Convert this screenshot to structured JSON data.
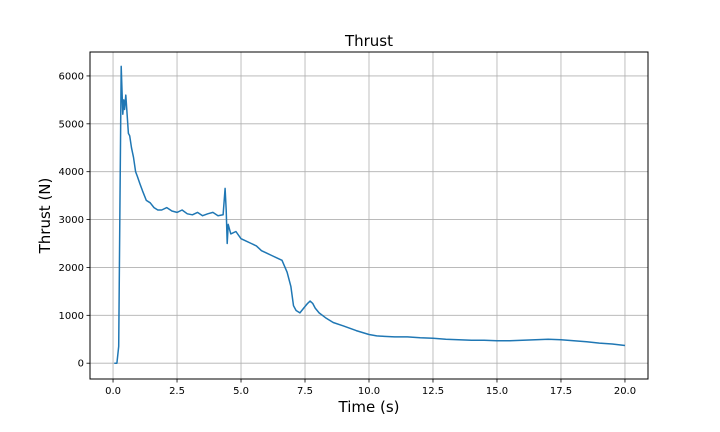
{
  "chart_data": {
    "type": "line",
    "title": "Thrust",
    "xlabel": "Time (s)",
    "ylabel": "Thrust (N)",
    "xlim": [
      -0.9,
      20.9
    ],
    "ylim": [
      -330,
      6500
    ],
    "x_ticks": [
      0.0,
      2.5,
      5.0,
      7.5,
      10.0,
      12.5,
      15.0,
      17.5,
      20.0
    ],
    "x_tick_labels": [
      "0.0",
      "2.5",
      "5.0",
      "7.5",
      "10.0",
      "12.5",
      "15.0",
      "17.5",
      "20.0"
    ],
    "y_ticks": [
      0,
      1000,
      2000,
      3000,
      4000,
      5000,
      6000
    ],
    "y_tick_labels": [
      "0",
      "1000",
      "2000",
      "3000",
      "4000",
      "5000",
      "6000"
    ],
    "grid": true,
    "series": [
      {
        "color": "#1f77b4",
        "x": [
          0.05,
          0.15,
          0.22,
          0.27,
          0.32,
          0.38,
          0.42,
          0.45,
          0.5,
          0.55,
          0.6,
          0.65,
          0.72,
          0.8,
          0.88,
          0.95,
          1.05,
          1.15,
          1.3,
          1.45,
          1.6,
          1.75,
          1.9,
          2.1,
          2.3,
          2.5,
          2.7,
          2.9,
          3.1,
          3.3,
          3.5,
          3.7,
          3.9,
          4.1,
          4.3,
          4.38,
          4.42,
          4.46,
          4.5,
          4.6,
          4.8,
          5.0,
          5.2,
          5.4,
          5.6,
          5.8,
          6.0,
          6.2,
          6.4,
          6.6,
          6.8,
          6.95,
          7.05,
          7.15,
          7.3,
          7.45,
          7.6,
          7.7,
          7.8,
          7.9,
          8.05,
          8.3,
          8.6,
          9.0,
          9.5,
          10.0,
          10.3,
          10.6,
          11.0,
          11.5,
          12.0,
          12.5,
          13.0,
          13.5,
          14.0,
          14.5,
          15.0,
          15.5,
          16.0,
          16.5,
          17.0,
          17.5,
          18.0,
          18.5,
          19.0,
          19.5,
          20.0
        ],
        "y": [
          0,
          0,
          350,
          3200,
          6200,
          5200,
          5500,
          5300,
          5600,
          5200,
          4800,
          4750,
          4500,
          4300,
          4000,
          3900,
          3750,
          3600,
          3400,
          3350,
          3250,
          3200,
          3200,
          3250,
          3180,
          3150,
          3200,
          3120,
          3100,
          3150,
          3080,
          3120,
          3150,
          3080,
          3100,
          3650,
          3200,
          2500,
          2900,
          2700,
          2750,
          2600,
          2550,
          2500,
          2450,
          2350,
          2300,
          2250,
          2200,
          2150,
          1900,
          1600,
          1200,
          1100,
          1050,
          1150,
          1250,
          1300,
          1250,
          1150,
          1050,
          950,
          850,
          780,
          680,
          600,
          570,
          560,
          550,
          550,
          530,
          520,
          500,
          490,
          480,
          480,
          470,
          470,
          480,
          490,
          500,
          490,
          470,
          450,
          420,
          400,
          370
        ]
      }
    ]
  }
}
